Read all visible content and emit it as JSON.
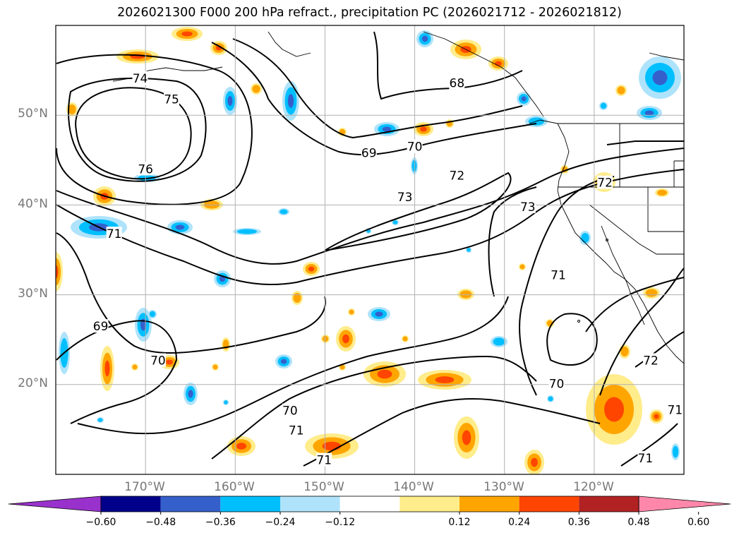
{
  "title": "2026021300 F000 200 hPa refract., precipitation PC (2026021712 - 2026021812)",
  "map": {
    "projection": "equirectangular",
    "lon_range": [
      -180,
      -110
    ],
    "lat_range": [
      10,
      60
    ],
    "grid": true,
    "lat_labels": [
      "50°N",
      "40°N",
      "30°N",
      "20°N"
    ],
    "lon_labels": [
      "170°W",
      "160°W",
      "150°W",
      "140°W",
      "130°W",
      "120°W"
    ]
  },
  "contours": {
    "field": "200 hPa refractivity",
    "labels": [
      {
        "text": "74",
        "lon": -170.6,
        "lat": 54.1
      },
      {
        "text": "75",
        "lon": -167.1,
        "lat": 51.8
      },
      {
        "text": "76",
        "lon": -170.0,
        "lat": 44.0
      },
      {
        "text": "68",
        "lon": -135.3,
        "lat": 53.6
      },
      {
        "text": "69",
        "lon": -145.1,
        "lat": 45.8
      },
      {
        "text": "70",
        "lon": -140.0,
        "lat": 46.5
      },
      {
        "text": "72",
        "lon": -135.3,
        "lat": 43.3
      },
      {
        "text": "73",
        "lon": -141.1,
        "lat": 40.9
      },
      {
        "text": "73",
        "lon": -127.4,
        "lat": 39.8
      },
      {
        "text": "72",
        "lon": -118.8,
        "lat": 42.5
      },
      {
        "text": "71",
        "lon": -124.0,
        "lat": 32.2
      },
      {
        "text": "70",
        "lon": -124.2,
        "lat": 20.1
      },
      {
        "text": "72",
        "lon": -113.7,
        "lat": 22.7
      },
      {
        "text": "71",
        "lon": -111.0,
        "lat": 17.2
      },
      {
        "text": "71",
        "lon": -114.3,
        "lat": 11.8
      },
      {
        "text": "71",
        "lon": -173.5,
        "lat": 36.8
      },
      {
        "text": "69",
        "lon": -175.0,
        "lat": 26.5
      },
      {
        "text": "70",
        "lon": -168.6,
        "lat": 22.7
      },
      {
        "text": "70",
        "lon": -153.9,
        "lat": 17.1
      },
      {
        "text": "71",
        "lon": -153.2,
        "lat": 14.9
      },
      {
        "text": "71",
        "lon": -150.1,
        "lat": 11.6
      }
    ]
  },
  "colorbar": {
    "ticks": [
      "−0.60",
      "−0.48",
      "−0.36",
      "−0.24",
      "−0.12",
      "0.12",
      "0.24",
      "0.36",
      "0.48",
      "0.60"
    ],
    "colors": [
      "#9932cc",
      "#00008b",
      "#3560cc",
      "#00bfff",
      "#aee3fb",
      "#ffffff",
      "#ffec8b",
      "#ffa500",
      "#ff4500",
      "#b22222",
      "#ff88aa"
    ]
  },
  "precip_colors": {
    "neg_light": "#aee3fb",
    "neg_mid": "#00bfff",
    "neg_dark": "#3560cc",
    "pos_light": "#ffec8b",
    "pos_mid": "#ffa500",
    "pos_dark": "#ff4500"
  }
}
